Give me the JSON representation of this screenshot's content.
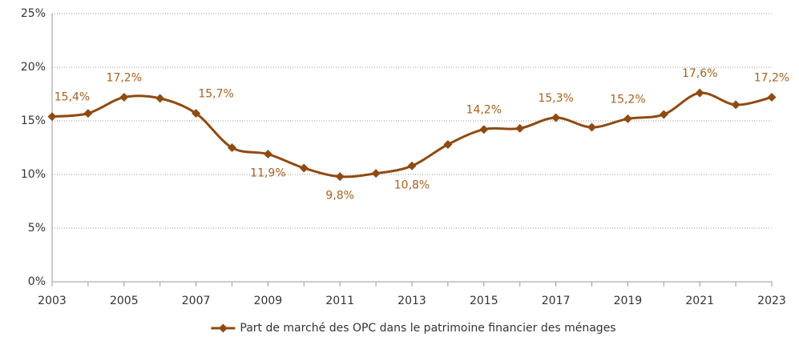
{
  "chart_data": {
    "type": "line",
    "x": [
      2003,
      2004,
      2005,
      2006,
      2007,
      2008,
      2009,
      2010,
      2011,
      2012,
      2013,
      2014,
      2015,
      2016,
      2017,
      2018,
      2019,
      2020,
      2021,
      2022,
      2023
    ],
    "series": [
      {
        "name": "Part de marché des OPC dans le patrimoine financier des ménages",
        "color": "#8f4a12",
        "values": [
          15.4,
          15.7,
          17.2,
          17.1,
          15.7,
          12.5,
          11.9,
          10.6,
          9.8,
          10.1,
          10.8,
          12.8,
          14.2,
          14.3,
          15.3,
          14.4,
          15.2,
          15.6,
          17.6,
          16.5,
          17.2
        ],
        "value_labels": [
          "15,4%",
          null,
          "17,2%",
          null,
          "15,7%",
          null,
          "11,9%",
          null,
          "9,8%",
          null,
          "10,8%",
          null,
          "14,2%",
          null,
          "15,3%",
          null,
          "15,2%",
          null,
          "17,6%",
          null,
          "17,2%"
        ],
        "label_color": "#a8601f"
      }
    ],
    "xlim": [
      2003,
      2023
    ],
    "xticks": [
      2003,
      2005,
      2007,
      2009,
      2011,
      2013,
      2015,
      2017,
      2019,
      2021,
      2023
    ],
    "ylim": [
      0,
      25
    ],
    "yticks": [
      {
        "value": 0,
        "label": "0%"
      },
      {
        "value": 5,
        "label": "5%"
      },
      {
        "value": 10,
        "label": "10%"
      },
      {
        "value": 15,
        "label": "15%"
      },
      {
        "value": 20,
        "label": "20%"
      },
      {
        "value": 25,
        "label": "25%"
      }
    ],
    "grid": true,
    "legend": "bottom"
  }
}
